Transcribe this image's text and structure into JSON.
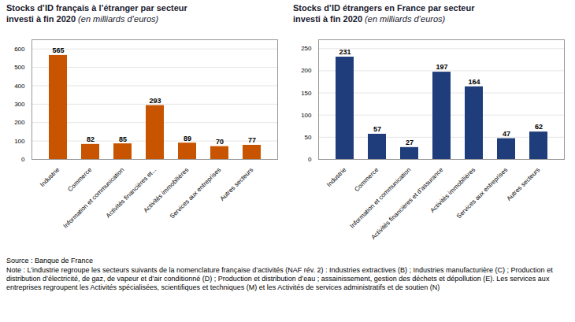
{
  "chart_data": [
    {
      "type": "bar",
      "title": "Stocks d’ID français à l’étranger par secteur\ninvesti à fin 2020 ",
      "subtitle": "(en milliards d’euros)",
      "categories": [
        "Industrie",
        "Commerce",
        "Information et communication",
        "Activités financières et...",
        "Activités immobilières",
        "Services aux entreprises",
        "Autres secteurs"
      ],
      "values": [
        565,
        82,
        85,
        293,
        89,
        70,
        77
      ],
      "color": "#C85400",
      "ylim": [
        0,
        650
      ],
      "yticks": [
        0,
        100,
        200,
        300,
        400,
        500,
        600
      ],
      "grid": true,
      "data_labels": true
    },
    {
      "type": "bar",
      "title": "Stocks d’ID étrangers en France par secteur\ninvesti à fin 2020 ",
      "subtitle": "(en milliards d’euros)",
      "categories": [
        "Industrie",
        "Commerce",
        "Information et communication",
        "Activités financières et d’assurance",
        "Activités immobilières",
        "Services aux entreprises",
        "Autres secteurs"
      ],
      "values": [
        231,
        57,
        27,
        197,
        164,
        47,
        62
      ],
      "color": "#1F3D7A",
      "ylim": [
        0,
        270
      ],
      "yticks": [
        0,
        50,
        100,
        150,
        200,
        250
      ],
      "grid": true,
      "data_labels": true
    }
  ],
  "annotations": [
    "Source : Banque de France",
    "Note : L’industrie regroupe les secteurs suivants de la nomenclature française d’activités (NAF rév. 2) : Industries extractives (B) ; Industries manufacturière (C) ; Production et distribution d’électricité, de gaz, de vapeur et d’air conditionné (D) ; Production et distribution d’eau ; assainissement, gestion des déchets et dépollution (E). Les services aux entreprises regroupent les Activités spécialisées, scientifiques et techniques (M) et les Activités de services administratifs et de soutien (N)"
  ]
}
